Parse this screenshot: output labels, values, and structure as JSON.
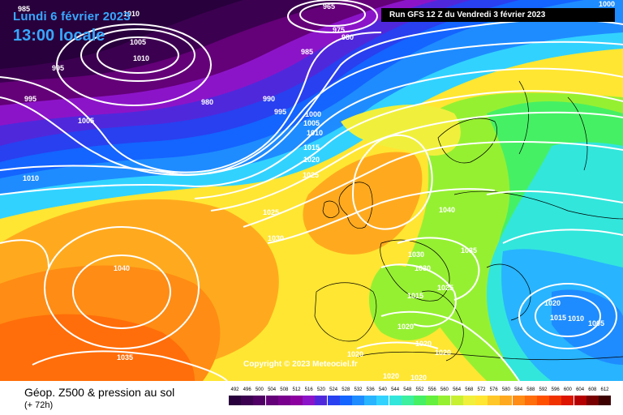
{
  "header": {
    "date": "Lundi 6 février 2023",
    "time": "13:00 locale",
    "run": "Run GFS 12 Z du Vendredi 3 février 2023"
  },
  "copyright": "Copyright © 2023 Meteociel.fr",
  "legend": {
    "title": "Géop. Z500 & pression au sol",
    "lead": "(+ 72h)",
    "scale": [
      {
        "v": "492",
        "c": "#28003c"
      },
      {
        "v": "496",
        "c": "#3c0050"
      },
      {
        "v": "500",
        "c": "#500064"
      },
      {
        "v": "504",
        "c": "#640078"
      },
      {
        "v": "508",
        "c": "#78008c"
      },
      {
        "v": "512",
        "c": "#8c00a0"
      },
      {
        "v": "516",
        "c": "#8c14c8"
      },
      {
        "v": "520",
        "c": "#5028dc"
      },
      {
        "v": "524",
        "c": "#2840f0"
      },
      {
        "v": "528",
        "c": "#1464ff"
      },
      {
        "v": "532",
        "c": "#1e8cff"
      },
      {
        "v": "536",
        "c": "#28b4ff"
      },
      {
        "v": "540",
        "c": "#32d2ff"
      },
      {
        "v": "544",
        "c": "#32e6dc"
      },
      {
        "v": "548",
        "c": "#3cf0a0"
      },
      {
        "v": "552",
        "c": "#46f064"
      },
      {
        "v": "556",
        "c": "#64f03c"
      },
      {
        "v": "560",
        "c": "#96f032"
      },
      {
        "v": "564",
        "c": "#c8f032"
      },
      {
        "v": "568",
        "c": "#f0f03c"
      },
      {
        "v": "572",
        "c": "#ffe632"
      },
      {
        "v": "576",
        "c": "#ffc828"
      },
      {
        "v": "580",
        "c": "#ffaa1e"
      },
      {
        "v": "584",
        "c": "#ff8c14"
      },
      {
        "v": "588",
        "c": "#ff6e0a"
      },
      {
        "v": "592",
        "c": "#ff5000"
      },
      {
        "v": "596",
        "c": "#f03200"
      },
      {
        "v": "600",
        "c": "#dc1400"
      },
      {
        "v": "604",
        "c": "#b40000"
      },
      {
        "v": "608",
        "c": "#780000"
      },
      {
        "v": "612",
        "c": "#3c0000"
      }
    ]
  },
  "map": {
    "pressure_labels": [
      "985",
      "995",
      "995",
      "1005",
      "1010",
      "1005",
      "1010",
      "1010",
      "985",
      "980",
      "975",
      "965",
      "980",
      "990",
      "995",
      "1000",
      "1005",
      "1010",
      "1015",
      "1020",
      "1025",
      "1025",
      "1030",
      "1040",
      "1035",
      "1040",
      "1035",
      "1030",
      "1030",
      "1025",
      "1015",
      "1020",
      "1020",
      "1020",
      "1020",
      "1020",
      "1020",
      "1020",
      "1015",
      "1010",
      "1005",
      "1000"
    ]
  }
}
